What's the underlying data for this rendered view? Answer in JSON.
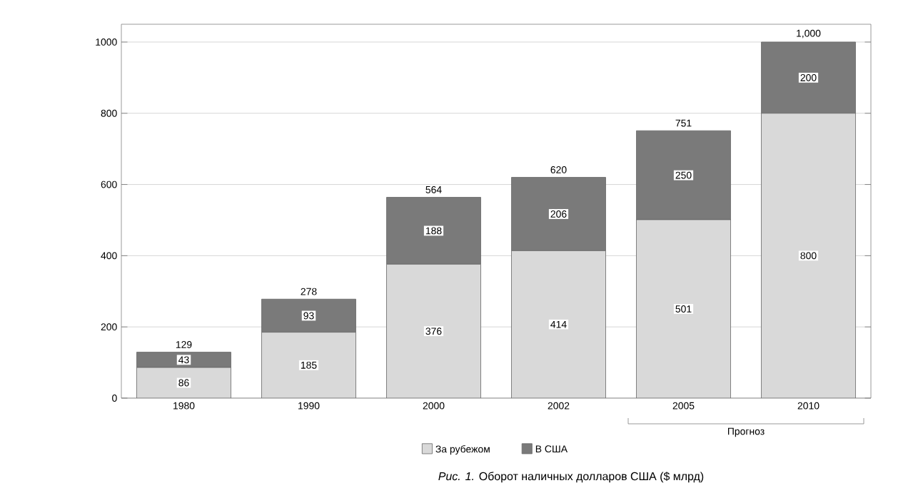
{
  "chart_data": {
    "type": "bar",
    "stacked": true,
    "categories": [
      "1980",
      "1990",
      "2000",
      "2002",
      "2005",
      "2010"
    ],
    "series": [
      {
        "name": "За рубежом",
        "color": "#d9d9d9",
        "values": [
          86,
          185,
          376,
          414,
          501,
          800
        ],
        "value_labels": [
          "86",
          "185",
          "376",
          "414",
          "501",
          "800"
        ]
      },
      {
        "name": "В США",
        "color": "#7a7a7a",
        "values": [
          43,
          93,
          188,
          206,
          250,
          200
        ],
        "value_labels": [
          "43",
          "93",
          "188",
          "206",
          "250",
          "200"
        ]
      }
    ],
    "totals": [
      "129",
      "278",
      "564",
      "620",
      "751",
      "1,000"
    ],
    "ylim": [
      0,
      1050
    ],
    "yticks": [
      0,
      200,
      400,
      600,
      800,
      1000
    ],
    "grid": "y",
    "legend": "bottom",
    "annotations": [
      "Прогноз",
      "*Рис. 1.* Оборот наличных долларов США ($ млрд)"
    ]
  }
}
